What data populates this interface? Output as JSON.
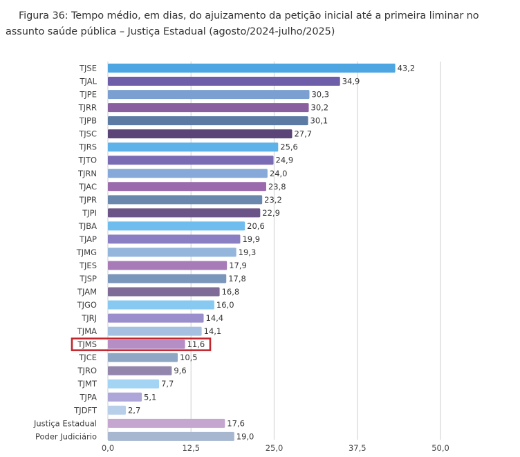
{
  "caption": {
    "line1": "Figura 36: Tempo médio, em dias, do ajuizamento da petição inicial até a primeira liminar no",
    "line2": "assunto saúde pública – Justiça Estadual (agosto/2024-julho/2025)"
  },
  "chart_data": {
    "type": "bar",
    "orientation": "horizontal",
    "title": "Figura 36: Tempo médio, em dias, do ajuizamento da petição inicial até a primeira liminar no assunto saúde pública – Justiça Estadual (agosto/2024-julho/2025)",
    "xlabel": "",
    "ylabel": "",
    "xlim": [
      0,
      50
    ],
    "grid": true,
    "ticks": [
      "0,0",
      "12,5",
      "25,0",
      "37,5",
      "50,0"
    ],
    "tick_values": [
      0,
      12.5,
      25,
      37.5,
      50
    ],
    "categories": [
      "TJSE",
      "TJAL",
      "TJPE",
      "TJRR",
      "TJPB",
      "TJSC",
      "TJRS",
      "TJTO",
      "TJRN",
      "TJAC",
      "TJPR",
      "TJPI",
      "TJBA",
      "TJAP",
      "TJMG",
      "TJES",
      "TJSP",
      "TJAM",
      "TJGO",
      "TJRJ",
      "TJMA",
      "TJMS",
      "TJCE",
      "TJRO",
      "TJMT",
      "TJPA",
      "TJDFT",
      "Justiça Estadual",
      "Poder Judiciário"
    ],
    "values": [
      43.2,
      34.9,
      30.3,
      30.2,
      30.1,
      27.7,
      25.6,
      24.9,
      24.0,
      23.8,
      23.2,
      22.9,
      20.6,
      19.9,
      19.3,
      17.9,
      17.8,
      16.8,
      16.0,
      14.4,
      14.1,
      11.6,
      10.5,
      9.6,
      7.7,
      5.1,
      2.7,
      17.6,
      19.0
    ],
    "value_labels": [
      "43,2",
      "34,9",
      "30,3",
      "30,2",
      "30,1",
      "27,7",
      "25,6",
      "24,9",
      "24,0",
      "23,8",
      "23,2",
      "22,9",
      "20,6",
      "19,9",
      "19,3",
      "17,9",
      "17,8",
      "16,8",
      "16,0",
      "14,4",
      "14,1",
      "11,6",
      "10,5",
      "9,6",
      "7,7",
      "5,1",
      "2,7",
      "17,6",
      "19,0"
    ],
    "colors": [
      "#4da6e2",
      "#6e5eaa",
      "#7a9fd0",
      "#8a5f9f",
      "#5b7ba4",
      "#5a4478",
      "#5db2ea",
      "#7a6bb5",
      "#86a9d9",
      "#9a6aac",
      "#6a88ad",
      "#6a5488",
      "#6fbdee",
      "#8a7fc3",
      "#94b5dc",
      "#a77bb8",
      "#7b96bb",
      "#7e6b98",
      "#88c9f2",
      "#9a8fcc",
      "#a6c0e2",
      "#b48ec4",
      "#8fa6c5",
      "#9286ad",
      "#a3d4f3",
      "#aea5d8",
      "#b8cfea",
      "#c4a6d1",
      "#a6b7cf"
    ],
    "highlight": {
      "category": "TJMS",
      "color": "#c0272d"
    }
  }
}
